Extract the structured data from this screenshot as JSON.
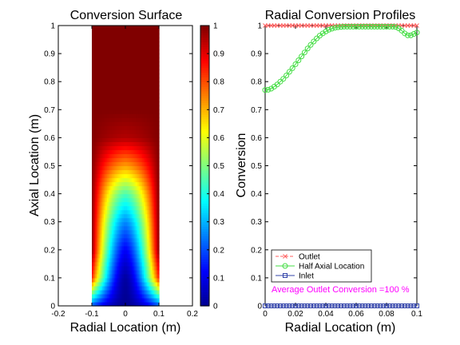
{
  "chart_data": [
    {
      "type": "heatmap",
      "title": "Conversion Surface",
      "xlabel": "Radial Location (m)",
      "ylabel": "Axial Location (m)",
      "xlim": [
        -0.2,
        0.2
      ],
      "ylim": [
        0,
        1
      ],
      "x_ticks": [
        "-0.2",
        "-0.1",
        "0",
        "0.1",
        "0.2"
      ],
      "y_ticks": [
        "0",
        "0.1",
        "0.2",
        "0.3",
        "0.4",
        "0.5",
        "0.6",
        "0.7",
        "0.8",
        "0.9",
        "1"
      ],
      "domain_x": [
        -0.1,
        0.1
      ],
      "colormap": "jet",
      "clim": [
        0,
        1
      ],
      "colorbar_ticks": [
        "0",
        "0.1",
        "0.2",
        "0.3",
        "0.4",
        "0.5",
        "0.6",
        "0.7",
        "0.8",
        "0.9",
        "1"
      ],
      "conversion_by_axial_location": {
        "axial_location": [
          0,
          0.1,
          0.2,
          0.3,
          0.4,
          0.5,
          0.6,
          0.7
        ],
        "center_conversion": [
          0.0,
          0.02,
          0.12,
          0.26,
          0.45,
          0.72,
          0.95,
          1.0
        ],
        "wall_conversion": [
          0.2,
          0.85,
          1.0,
          1.0,
          1.0,
          1.0,
          1.0,
          1.0
        ]
      }
    },
    {
      "type": "line",
      "title": "Radial Conversion Profiles",
      "xlabel": "Radial Location (m)",
      "ylabel": "Conversion",
      "xlim": [
        0,
        0.1
      ],
      "ylim": [
        0,
        1
      ],
      "x_ticks": [
        "0",
        "0.02",
        "0.04",
        "0.06",
        "0.08",
        "0.1"
      ],
      "y_ticks": [
        "0",
        "0.1",
        "0.2",
        "0.3",
        "0.4",
        "0.5",
        "0.6",
        "0.7",
        "0.8",
        "0.9",
        "1"
      ],
      "legend_position": "bottom-left",
      "series": [
        {
          "name": "Outlet",
          "color": "#ff6060",
          "marker": "x",
          "x": [
            0,
            0.002,
            0.004,
            0.006,
            0.008,
            0.01,
            0.012,
            0.014,
            0.016,
            0.018,
            0.02,
            0.022,
            0.024,
            0.026,
            0.028,
            0.03,
            0.032,
            0.034,
            0.036,
            0.038,
            0.04,
            0.042,
            0.044,
            0.046,
            0.048,
            0.05,
            0.052,
            0.054,
            0.056,
            0.058,
            0.06,
            0.062,
            0.064,
            0.066,
            0.068,
            0.07,
            0.072,
            0.074,
            0.076,
            0.078,
            0.08,
            0.082,
            0.084,
            0.086,
            0.088,
            0.09,
            0.092,
            0.094,
            0.096,
            0.098,
            0.1
          ],
          "y": [
            1,
            1,
            1,
            1,
            1,
            1,
            1,
            1,
            1,
            1,
            1,
            1,
            1,
            1,
            1,
            1,
            1,
            1,
            1,
            1,
            1,
            1,
            1,
            1,
            1,
            1,
            1,
            1,
            1,
            1,
            1,
            1,
            1,
            1,
            1,
            1,
            1,
            1,
            1,
            1,
            1,
            1,
            1,
            1,
            1,
            1,
            1,
            1,
            1,
            1,
            1
          ]
        },
        {
          "name": "Half Axial Location",
          "color": "#44dd44",
          "marker": "o",
          "x": [
            0,
            0.002,
            0.004,
            0.006,
            0.008,
            0.01,
            0.012,
            0.014,
            0.016,
            0.018,
            0.02,
            0.022,
            0.024,
            0.026,
            0.028,
            0.03,
            0.032,
            0.034,
            0.036,
            0.038,
            0.04,
            0.042,
            0.044,
            0.046,
            0.048,
            0.05,
            0.052,
            0.054,
            0.056,
            0.058,
            0.06,
            0.062,
            0.064,
            0.066,
            0.068,
            0.07,
            0.072,
            0.074,
            0.076,
            0.078,
            0.08,
            0.082,
            0.084,
            0.086,
            0.088,
            0.09,
            0.092,
            0.094,
            0.096,
            0.098,
            0.1
          ],
          "y": [
            0.77,
            0.771,
            0.775,
            0.782,
            0.79,
            0.8,
            0.81,
            0.822,
            0.835,
            0.848,
            0.862,
            0.876,
            0.89,
            0.904,
            0.918,
            0.931,
            0.943,
            0.954,
            0.964,
            0.972,
            0.979,
            0.985,
            0.989,
            0.992,
            0.994,
            0.995,
            0.996,
            0.996,
            0.996,
            0.996,
            0.996,
            0.996,
            0.996,
            0.996,
            0.996,
            0.996,
            0.996,
            0.996,
            0.996,
            0.996,
            0.996,
            0.996,
            0.996,
            0.995,
            0.99,
            0.982,
            0.972,
            0.965,
            0.965,
            0.97,
            0.975
          ]
        },
        {
          "name": "Inlet",
          "color": "#3344aa",
          "marker": "s",
          "x": [
            0,
            0.002,
            0.004,
            0.006,
            0.008,
            0.01,
            0.012,
            0.014,
            0.016,
            0.018,
            0.02,
            0.022,
            0.024,
            0.026,
            0.028,
            0.03,
            0.032,
            0.034,
            0.036,
            0.038,
            0.04,
            0.042,
            0.044,
            0.046,
            0.048,
            0.05,
            0.052,
            0.054,
            0.056,
            0.058,
            0.06,
            0.062,
            0.064,
            0.066,
            0.068,
            0.07,
            0.072,
            0.074,
            0.076,
            0.078,
            0.08,
            0.082,
            0.084,
            0.086,
            0.088,
            0.09,
            0.092,
            0.094,
            0.096,
            0.098,
            0.1
          ],
          "y": [
            0,
            0,
            0,
            0,
            0,
            0,
            0,
            0,
            0,
            0,
            0,
            0,
            0,
            0,
            0,
            0,
            0,
            0,
            0,
            0,
            0,
            0,
            0,
            0,
            0,
            0,
            0,
            0,
            0,
            0,
            0,
            0,
            0,
            0,
            0,
            0,
            0,
            0,
            0,
            0,
            0,
            0,
            0,
            0,
            0,
            0,
            0,
            0,
            0,
            0,
            0
          ]
        }
      ],
      "annotation": {
        "text": "Average Outlet Conversion =100 %",
        "color": "#ff00ff"
      }
    }
  ]
}
